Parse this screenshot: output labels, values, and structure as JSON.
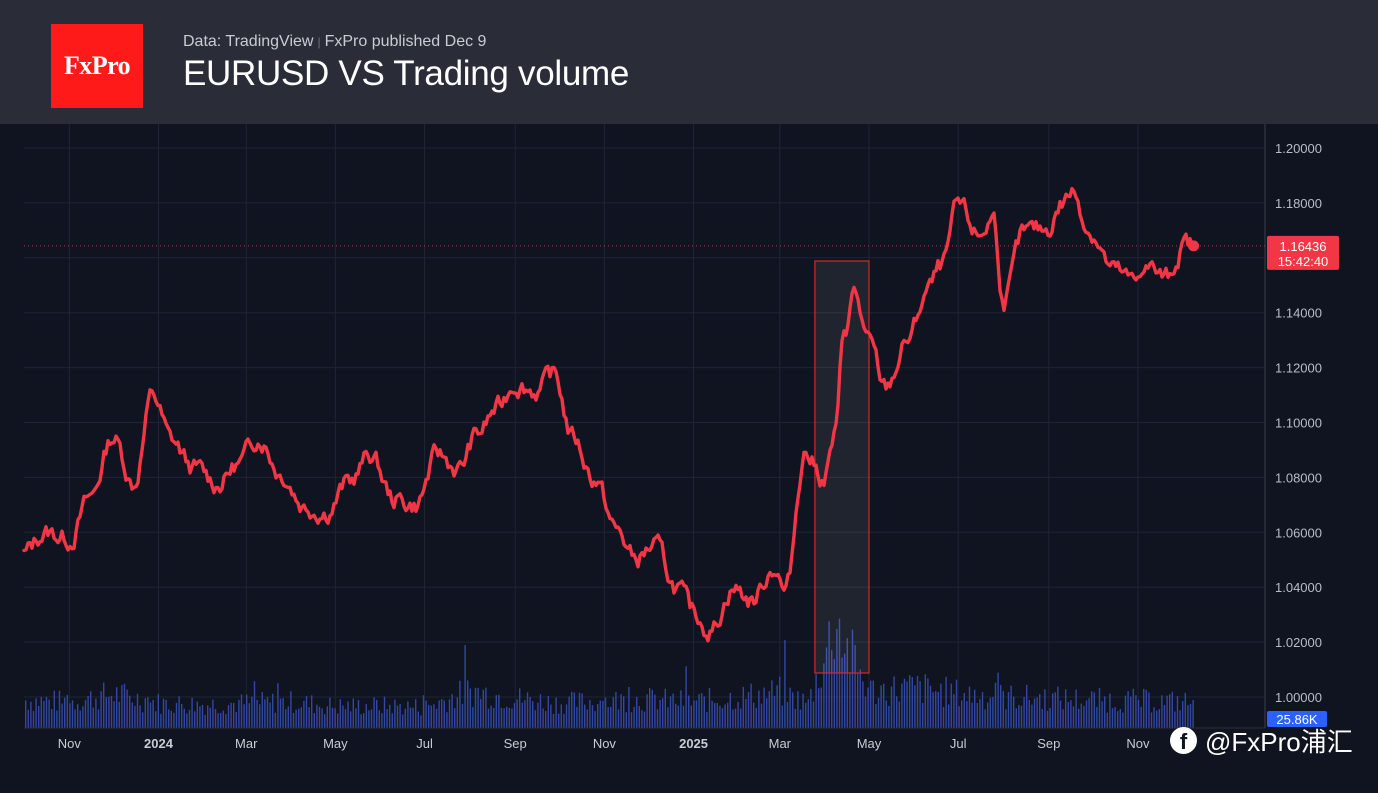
{
  "header": {
    "logo": "FxPro",
    "source": "Data: TradingView",
    "published": "FxPro published Dec 9",
    "title": "EURUSD VS Trading volume"
  },
  "watermark": {
    "icon": "facebook-icon",
    "text": "@FxPro浦汇"
  },
  "colors": {
    "price": "#f23645",
    "volume": "#3a4fb8",
    "grid": "#1f2533",
    "header_bg": "#2a2d37",
    "logo_bg": "#ff1a1a",
    "volume_tag": "#2962ff"
  },
  "chart_data": {
    "type": "line",
    "title": "EURUSD VS Trading volume",
    "y_axis": {
      "range": [
        0.99,
        1.205
      ],
      "ticks": [
        "1.20000",
        "1.18000",
        "1.16000",
        "1.14000",
        "1.12000",
        "1.10000",
        "1.08000",
        "1.06000",
        "1.04000",
        "1.02000",
        "1.00000"
      ]
    },
    "x_axis": {
      "ticks": [
        "Nov",
        "2024",
        "Mar",
        "May",
        "Jul",
        "Sep",
        "Nov",
        "2025",
        "Mar",
        "May",
        "Jul",
        "Sep",
        "Nov"
      ],
      "bold_ticks": [
        "2024",
        "2025"
      ]
    },
    "last_price": {
      "value": 1.16436,
      "label": "1.16436",
      "countdown": "15:42:40"
    },
    "volume_label": "25.86K",
    "highlight": {
      "from": "2025-03-25",
      "to": "2025-05-01",
      "note": "volume spike box"
    },
    "series": [
      {
        "name": "EURUSD",
        "x": [
          "2023-10-01",
          "2023-10-15",
          "2023-11-01",
          "2023-11-15",
          "2023-12-01",
          "2023-12-15",
          "2023-12-28",
          "2024-01-10",
          "2024-01-25",
          "2024-02-10",
          "2024-02-25",
          "2024-03-10",
          "2024-03-25",
          "2024-04-10",
          "2024-04-25",
          "2024-05-10",
          "2024-05-25",
          "2024-06-10",
          "2024-06-25",
          "2024-07-10",
          "2024-07-25",
          "2024-08-05",
          "2024-08-20",
          "2024-09-01",
          "2024-09-15",
          "2024-09-28",
          "2024-10-10",
          "2024-10-25",
          "2024-11-10",
          "2024-11-22",
          "2024-12-05",
          "2024-12-20",
          "2025-01-01",
          "2025-01-13",
          "2025-01-28",
          "2025-02-10",
          "2025-02-25",
          "2025-03-05",
          "2025-03-18",
          "2025-03-31",
          "2025-04-08",
          "2025-04-14",
          "2025-04-21",
          "2025-05-01",
          "2025-05-12",
          "2025-05-28",
          "2025-06-10",
          "2025-06-20",
          "2025-07-01",
          "2025-07-15",
          "2025-07-25",
          "2025-08-01",
          "2025-08-15",
          "2025-08-30",
          "2025-09-10",
          "2025-09-17",
          "2025-09-30",
          "2025-10-15",
          "2025-10-30",
          "2025-11-05",
          "2025-11-20",
          "2025-12-03",
          "2025-12-09"
        ],
        "values": [
          1.052,
          1.06,
          1.058,
          1.072,
          1.095,
          1.078,
          1.11,
          1.093,
          1.083,
          1.078,
          1.085,
          1.095,
          1.082,
          1.07,
          1.068,
          1.078,
          1.088,
          1.072,
          1.07,
          1.088,
          1.083,
          1.095,
          1.105,
          1.115,
          1.112,
          1.117,
          1.095,
          1.08,
          1.06,
          1.05,
          1.055,
          1.04,
          1.03,
          1.025,
          1.04,
          1.035,
          1.048,
          1.038,
          1.09,
          1.08,
          1.095,
          1.133,
          1.147,
          1.128,
          1.112,
          1.13,
          1.148,
          1.156,
          1.178,
          1.168,
          1.175,
          1.145,
          1.168,
          1.17,
          1.18,
          1.184,
          1.17,
          1.155,
          1.15,
          1.158,
          1.152,
          1.165,
          1.16436
        ]
      },
      {
        "name": "Volume",
        "unit": "K",
        "x": [
          "2023-10-01",
          "2023-11-01",
          "2023-12-01",
          "2024-01-01",
          "2024-02-01",
          "2024-03-01",
          "2024-04-01",
          "2024-05-01",
          "2024-06-01",
          "2024-07-01",
          "2024-08-01",
          "2024-09-01",
          "2024-10-01",
          "2024-11-01",
          "2024-12-01",
          "2025-01-01",
          "2025-02-01",
          "2025-03-01",
          "2025-03-20",
          "2025-04-01",
          "2025-04-08",
          "2025-04-15",
          "2025-05-01",
          "2025-06-01",
          "2025-07-01",
          "2025-08-01",
          "2025-09-01",
          "2025-10-01",
          "2025-11-01",
          "2025-12-01"
        ],
        "values": [
          45,
          42,
          55,
          40,
          38,
          40,
          42,
          35,
          36,
          34,
          60,
          48,
          40,
          44,
          46,
          42,
          50,
          58,
          40,
          120,
          180,
          130,
          60,
          65,
          55,
          50,
          48,
          45,
          44,
          42
        ]
      }
    ]
  }
}
